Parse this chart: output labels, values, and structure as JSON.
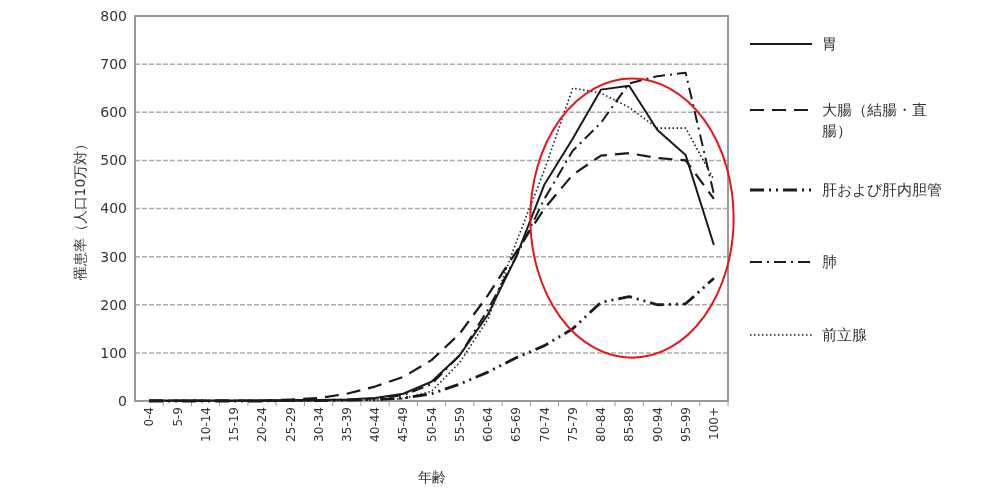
{
  "chart_data": {
    "type": "line",
    "xlabel": "年齢",
    "ylabel": "罹患率（人口10万対）",
    "categories": [
      "0-4",
      "5-9",
      "10-14",
      "15-19",
      "20-24",
      "25-29",
      "30-34",
      "35-39",
      "40-44",
      "45-49",
      "50-54",
      "55-59",
      "60-64",
      "65-69",
      "70-74",
      "75-79",
      "80-84",
      "85-89",
      "90-94",
      "95-99",
      "100+"
    ],
    "ylim": [
      0,
      800
    ],
    "yticks": [
      0,
      100,
      200,
      300,
      400,
      500,
      600,
      700,
      800
    ],
    "grid": "y",
    "legend": "right",
    "marker": "none",
    "series": [
      {
        "name": "胃",
        "color": "#1a1a1a",
        "line_style": "solid",
        "values": [
          1,
          1,
          1,
          1,
          1,
          2,
          2,
          3,
          6,
          15,
          40,
          95,
          180,
          300,
          450,
          545,
          647,
          655,
          563,
          511,
          324
        ]
      },
      {
        "name": "大腸（結腸・直腸）",
        "color": "#1a1a1a",
        "line_style": "dashed",
        "values": [
          1,
          1,
          1,
          1,
          1,
          3,
          6,
          15,
          30,
          50,
          85,
          140,
          220,
          310,
          400,
          470,
          510,
          515,
          505,
          500,
          420
        ]
      },
      {
        "name": "肝および肝内胆管",
        "color": "#1a1a1a",
        "line_style": "dashdotdot",
        "values": [
          0,
          0,
          0,
          0,
          0,
          1,
          1,
          2,
          3,
          6,
          15,
          35,
          60,
          90,
          115,
          150,
          205,
          217,
          200,
          202,
          255
        ]
      },
      {
        "name": "肺",
        "color": "#1a1a1a",
        "line_style": "dashdot",
        "values": [
          0,
          0,
          0,
          0,
          0,
          1,
          1,
          2,
          5,
          12,
          35,
          95,
          190,
          300,
          420,
          520,
          578,
          660,
          675,
          682,
          430
        ]
      },
      {
        "name": "前立腺",
        "color": "#1a1a1a",
        "line_style": "dotted",
        "values": [
          0,
          0,
          0,
          0,
          0,
          0,
          0,
          1,
          2,
          5,
          20,
          80,
          170,
          330,
          480,
          650,
          640,
          610,
          567,
          567,
          460
        ]
      }
    ]
  }
}
